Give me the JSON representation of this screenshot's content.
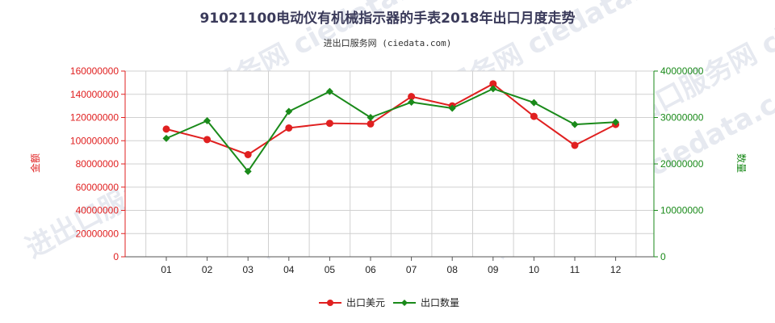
{
  "chart_data": {
    "type": "line",
    "title": "91021100电动仪有机械指示器的手表2018年出口月度走势",
    "subtitle": "进出口服务网 (ciedata.com)",
    "watermark": "进出口服务网 ciedata.com",
    "categories": [
      "01",
      "02",
      "03",
      "04",
      "05",
      "06",
      "07",
      "08",
      "09",
      "10",
      "11",
      "12"
    ],
    "y_left": {
      "label": "金额",
      "range": [
        0,
        160000000
      ],
      "ticks": [
        0,
        20000000,
        40000000,
        60000000,
        80000000,
        100000000,
        120000000,
        140000000,
        160000000
      ],
      "tick_labels": [
        "0",
        "20000000",
        "40000000",
        "60000000",
        "80000000",
        "100000000",
        "120000000",
        "140000000",
        "160000000"
      ]
    },
    "y_right": {
      "label": "数量",
      "range": [
        0,
        40000000
      ],
      "ticks": [
        0,
        10000000,
        20000000,
        30000000,
        40000000
      ],
      "tick_labels": [
        "0",
        "10000000",
        "20000000",
        "30000000",
        "40000000"
      ]
    },
    "series": [
      {
        "name": "出口美元",
        "axis": "left",
        "color": "#e02020",
        "values": [
          110000000,
          101000000,
          88000000,
          111000000,
          115000000,
          114500000,
          138000000,
          130000000,
          149000000,
          121000000,
          96000000,
          114000000
        ]
      },
      {
        "name": "出口数量",
        "axis": "right",
        "color": "#1a8a1a",
        "values": [
          25500000,
          29300000,
          18400000,
          31300000,
          35600000,
          30000000,
          33300000,
          32000000,
          36200000,
          33200000,
          28500000,
          29000000
        ]
      }
    ],
    "grid": true,
    "legend_position": "bottom-center"
  }
}
